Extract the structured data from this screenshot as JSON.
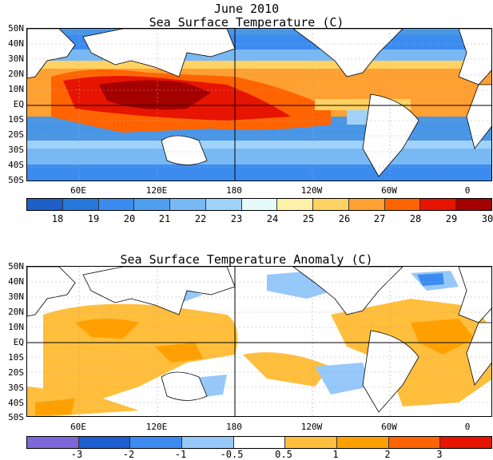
{
  "titles": {
    "date": "June 2010",
    "sst": "Sea Surface Temperature (C)",
    "anom": "Sea Surface Temperature Anomaly (C)"
  },
  "lat_labels": [
    "50N",
    "40N",
    "30N",
    "20N",
    "10N",
    "EQ",
    "10S",
    "20S",
    "30S",
    "40S",
    "50S"
  ],
  "lon_labels": [
    "60E",
    "120E",
    "180",
    "120W",
    "60W",
    "0"
  ],
  "sst_colorbar": {
    "colors": [
      "#1e5fc8",
      "#2878dc",
      "#3c8cf0",
      "#50a0f0",
      "#78b9f5",
      "#a0d2fa",
      "#e6fafa",
      "#fff0aa",
      "#ffd264",
      "#ffa032",
      "#ff6400",
      "#e61400",
      "#a50000"
    ],
    "labels": [
      "18",
      "19",
      "20",
      "21",
      "22",
      "23",
      "24",
      "25",
      "26",
      "27",
      "28",
      "29",
      "30"
    ]
  },
  "anom_colorbar": {
    "colors": [
      "#7e67d6",
      "#1e5fd2",
      "#3c8cf0",
      "#96c8fa",
      "#ffffff",
      "#ffbe3c",
      "#ffa000",
      "#ff6400",
      "#e61400"
    ],
    "labels": [
      "-3",
      "-2",
      "-1",
      "-0.5",
      "0.5",
      "1",
      "2",
      "3"
    ]
  }
}
